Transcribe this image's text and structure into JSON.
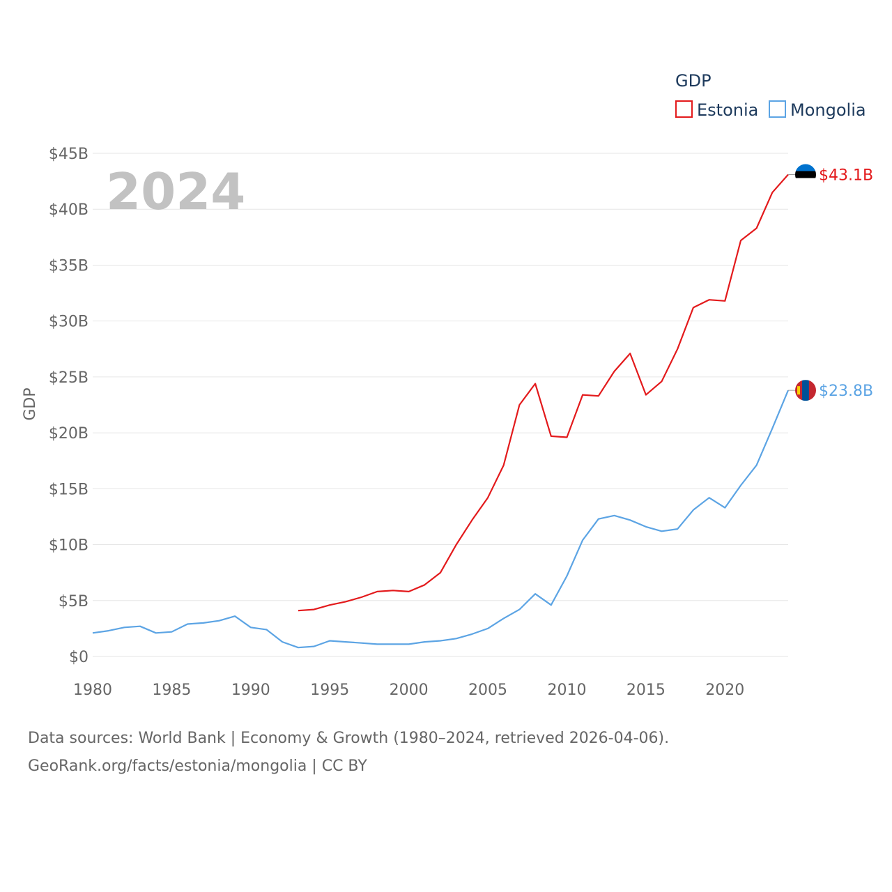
{
  "chart_data": {
    "type": "line",
    "title": "GDP",
    "ylabel": "GDP",
    "xlabel": "",
    "ylim": [
      0,
      45
    ],
    "xlim": [
      1980,
      2024
    ],
    "y_ticks": [
      0,
      5,
      10,
      15,
      20,
      25,
      30,
      35,
      40,
      45
    ],
    "y_tick_labels": [
      "$0",
      "$5B",
      "$10B",
      "$15B",
      "$20B",
      "$25B",
      "$30B",
      "$35B",
      "$40B",
      "$45B"
    ],
    "x_ticks": [
      1980,
      1985,
      1990,
      1995,
      2000,
      2005,
      2010,
      2015,
      2020
    ],
    "x_tick_labels": [
      "1980",
      "1985",
      "1990",
      "1995",
      "2000",
      "2005",
      "2010",
      "2015",
      "2020"
    ],
    "year_label": "2024",
    "legend_position": "top-right",
    "series": [
      {
        "name": "Estonia",
        "color": "#e31a1c",
        "end_label": "$43.1B",
        "flag_icon": "estonia-flag-icon",
        "x": [
          1993,
          1994,
          1995,
          1996,
          1997,
          1998,
          1999,
          2000,
          2001,
          2002,
          2003,
          2004,
          2005,
          2006,
          2007,
          2008,
          2009,
          2010,
          2011,
          2012,
          2013,
          2014,
          2015,
          2016,
          2017,
          2018,
          2019,
          2020,
          2021,
          2022,
          2023,
          2024
        ],
        "values": [
          4.1,
          4.2,
          4.6,
          4.9,
          5.3,
          5.8,
          5.9,
          5.8,
          6.4,
          7.5,
          10.0,
          12.2,
          14.2,
          17.1,
          22.5,
          24.4,
          19.7,
          19.6,
          23.4,
          23.3,
          25.5,
          27.1,
          23.4,
          24.6,
          27.5,
          31.2,
          31.9,
          31.8,
          37.2,
          38.3,
          41.5,
          43.1
        ]
      },
      {
        "name": "Mongolia",
        "color": "#5ca4e4",
        "end_label": "$23.8B",
        "flag_icon": "mongolia-flag-icon",
        "x": [
          1980,
          1981,
          1982,
          1983,
          1984,
          1985,
          1986,
          1987,
          1988,
          1989,
          1990,
          1991,
          1992,
          1993,
          1994,
          1995,
          1996,
          1997,
          1998,
          1999,
          2000,
          2001,
          2002,
          2003,
          2004,
          2005,
          2006,
          2007,
          2008,
          2009,
          2010,
          2011,
          2012,
          2013,
          2014,
          2015,
          2016,
          2017,
          2018,
          2019,
          2020,
          2021,
          2022,
          2023,
          2024
        ],
        "values": [
          2.1,
          2.3,
          2.6,
          2.7,
          2.1,
          2.2,
          2.9,
          3.0,
          3.2,
          3.6,
          2.6,
          2.4,
          1.3,
          0.8,
          0.9,
          1.4,
          1.3,
          1.2,
          1.1,
          1.1,
          1.1,
          1.3,
          1.4,
          1.6,
          2.0,
          2.5,
          3.4,
          4.2,
          5.6,
          4.6,
          7.2,
          10.4,
          12.3,
          12.6,
          12.2,
          11.6,
          11.2,
          11.4,
          13.1,
          14.2,
          13.3,
          15.3,
          17.1,
          20.4,
          23.8
        ]
      }
    ]
  },
  "source": {
    "line1": "Data sources: World Bank | Economy & Growth (1980–2024, retrieved 2026-04-06).",
    "line2": "GeoRank.org/facts/estonia/mongolia | CC BY"
  }
}
